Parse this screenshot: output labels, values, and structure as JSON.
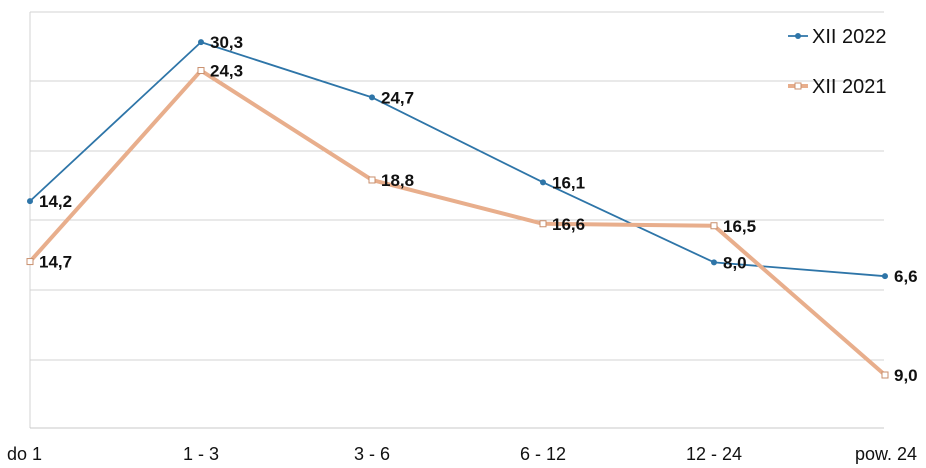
{
  "chart_data": {
    "type": "line",
    "title": "",
    "xlabel": "",
    "ylabel": "",
    "categories": [
      "do 1",
      "1 - 3",
      "3 - 6",
      "6 - 12",
      "12 - 24",
      "pow. 24"
    ],
    "series": [
      {
        "name": "XII 2022",
        "color": "#2e75a8",
        "values": [
          14.2,
          30.3,
          24.7,
          16.1,
          8.0,
          6.6
        ],
        "labels": [
          "14,2",
          "30,3",
          "24,7",
          "16,1",
          "8,0",
          "6,6"
        ]
      },
      {
        "name": "XII 2021",
        "color": "#e8ae8c",
        "values": [
          14.7,
          24.3,
          18.8,
          16.6,
          16.5,
          9.0
        ],
        "labels": [
          "14,7",
          "24,3",
          "18,8",
          "16,6",
          "16,5",
          "9,0"
        ]
      }
    ],
    "grid": true,
    "legend_position": "top-right",
    "y_tick_labels_shown": false
  }
}
